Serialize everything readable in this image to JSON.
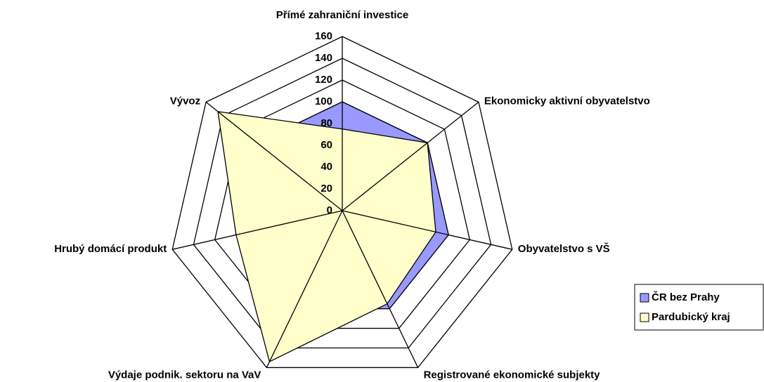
{
  "chart_data": {
    "type": "radar",
    "categories": [
      "Přímé zahraniční investice",
      "Ekonomicky aktivní obyvatelstvo",
      "Obyvatelstvo s VŠ",
      "Registrované ekonomické subjekty",
      "Výdaje podnik. sektoru na VaV",
      "Hrubý domácí produkt",
      "Vývoz"
    ],
    "series": [
      {
        "name": "ČR bez Prahy",
        "color": "#9999ff",
        "values": [
          100,
          100,
          100,
          100,
          100,
          100,
          100
        ]
      },
      {
        "name": "Pardubický kraj",
        "color": "#ffffcc",
        "values": [
          75,
          100,
          88,
          95,
          154,
          100,
          146
        ]
      }
    ],
    "ylim": [
      0,
      160
    ],
    "yticks": [
      0,
      20,
      40,
      60,
      80,
      100,
      120,
      140,
      160
    ],
    "grid": true,
    "legend": "right"
  }
}
